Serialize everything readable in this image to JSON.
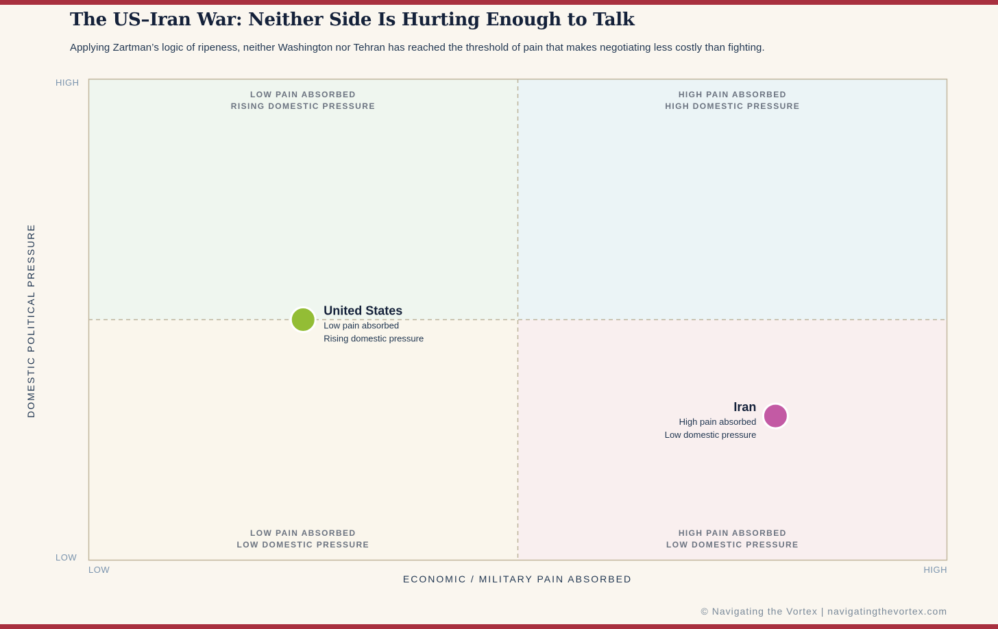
{
  "title": "The US–Iran War: Neither Side Is Hurting Enough to Talk",
  "subtitle": "Applying Zartman’s logic of ripeness, neither Washington nor Tehran has reached the threshold of pain that makes negotiating less costly than fighting.",
  "footer": "© Navigating the Vortex | navigatingthevortex.com",
  "colors": {
    "accent_bar": "#a8303f",
    "united_states": "#93bd35",
    "iran": "#c35aa4",
    "quadrant_top_left": "#eff6ef",
    "quadrant_top_right": "#ebf4f6",
    "quadrant_bottom_left": "#faf6ec",
    "quadrant_bottom_right": "#f9efef"
  },
  "chart_data": {
    "type": "scatter",
    "xlabel": "ECONOMIC / MILITARY PAIN ABSORBED",
    "ylabel": "DOMESTIC POLITICAL PRESSURE",
    "x_ticks": [
      "LOW",
      "HIGH"
    ],
    "y_ticks": [
      "LOW",
      "HIGH"
    ],
    "xlim": [
      0,
      1
    ],
    "ylim": [
      0,
      1
    ],
    "grid": false,
    "quadrants": [
      {
        "id": "top_left",
        "line1": "LOW PAIN ABSORBED",
        "line2": "RISING DOMESTIC PRESSURE"
      },
      {
        "id": "top_right",
        "line1": "HIGH PAIN ABSORBED",
        "line2": "HIGH DOMESTIC PRESSURE"
      },
      {
        "id": "bottom_left",
        "line1": "LOW PAIN ABSORBED",
        "line2": "LOW DOMESTIC PRESSURE"
      },
      {
        "id": "bottom_right",
        "line1": "HIGH PAIN ABSORBED",
        "line2": "LOW DOMESTIC PRESSURE"
      }
    ],
    "points": [
      {
        "name": "United States",
        "line1": "Low pain absorbed",
        "line2": "Rising domestic pressure",
        "x": 0.25,
        "y": 0.5,
        "color": "#93bd35",
        "label_side": "right"
      },
      {
        "name": "Iran",
        "line1": "High pain absorbed",
        "line2": "Low domestic pressure",
        "x": 0.8,
        "y": 0.3,
        "color": "#c35aa4",
        "label_side": "left"
      }
    ]
  }
}
